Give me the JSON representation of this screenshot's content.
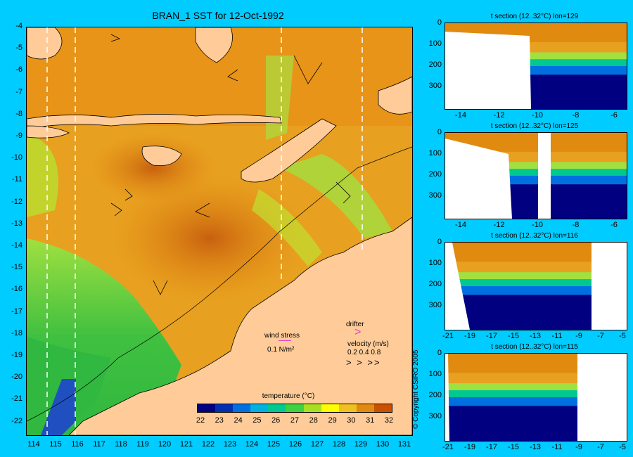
{
  "title": "BRAN_1 SST for 12-Oct-1992",
  "map": {
    "lat_ticks": [
      "-4",
      "-5",
      "-6",
      "-7",
      "-8",
      "-9",
      "-10",
      "-11",
      "-12",
      "-13",
      "-14",
      "-15",
      "-16",
      "-17",
      "-18",
      "-19",
      "-20",
      "-21",
      "-22"
    ],
    "lon_ticks": [
      "114",
      "115",
      "116",
      "117",
      "118",
      "119",
      "120",
      "121",
      "122",
      "123",
      "124",
      "125",
      "126",
      "127",
      "128",
      "129",
      "130",
      "131"
    ],
    "colors": {
      "land": "#ffcc99",
      "warm": "#e08a10",
      "hot": "#cc6a10",
      "mid": "#f0b020",
      "cool": "#a0e040",
      "green": "#40c040",
      "blue": "#2040c0"
    }
  },
  "colorbar": {
    "title": "temperature (°C)",
    "labels": [
      "22",
      "23",
      "24",
      "25",
      "26",
      "27",
      "28",
      "29",
      "30",
      "31",
      "32"
    ],
    "colors": [
      "#000080",
      "#0030b0",
      "#0070e0",
      "#00b0e0",
      "#00c890",
      "#40d040",
      "#a8e020",
      "#ffff00",
      "#f0c020",
      "#e08a10",
      "#c85000"
    ]
  },
  "legend": {
    "wind_stress_label": "wind stress",
    "wind_stress_value": "0.1 N/m²",
    "drifter_label": "drifter",
    "velocity_label": "velocity (m/s)",
    "velocity_values": "0.2 0.4 0.8"
  },
  "sections": [
    {
      "title": "t section (12..32°C) lon=129",
      "yticks": [
        "0",
        "100",
        "200",
        "300"
      ],
      "xticks": [
        "-14",
        "-12",
        "-10",
        "-8",
        "-6"
      ]
    },
    {
      "title": "t section (12..32°C) lon=125",
      "yticks": [
        "0",
        "100",
        "200",
        "300"
      ],
      "xticks": [
        "-14",
        "-12",
        "-10",
        "-8",
        "-6"
      ]
    },
    {
      "title": "t section (12..32°C) lon=116",
      "yticks": [
        "0",
        "100",
        "200",
        "300"
      ],
      "xticks": [
        "-21",
        "-19",
        "-17",
        "-15",
        "-13",
        "-11",
        "-9",
        "-7",
        "-5"
      ]
    },
    {
      "title": "t section (12..32°C) lon=115",
      "yticks": [
        "0",
        "100",
        "200",
        "300"
      ],
      "xticks": [
        "-21",
        "-19",
        "-17",
        "-15",
        "-13",
        "-11",
        "-9",
        "-7",
        "-5"
      ]
    }
  ],
  "copyright": "© Copyright CSIRO 2005"
}
